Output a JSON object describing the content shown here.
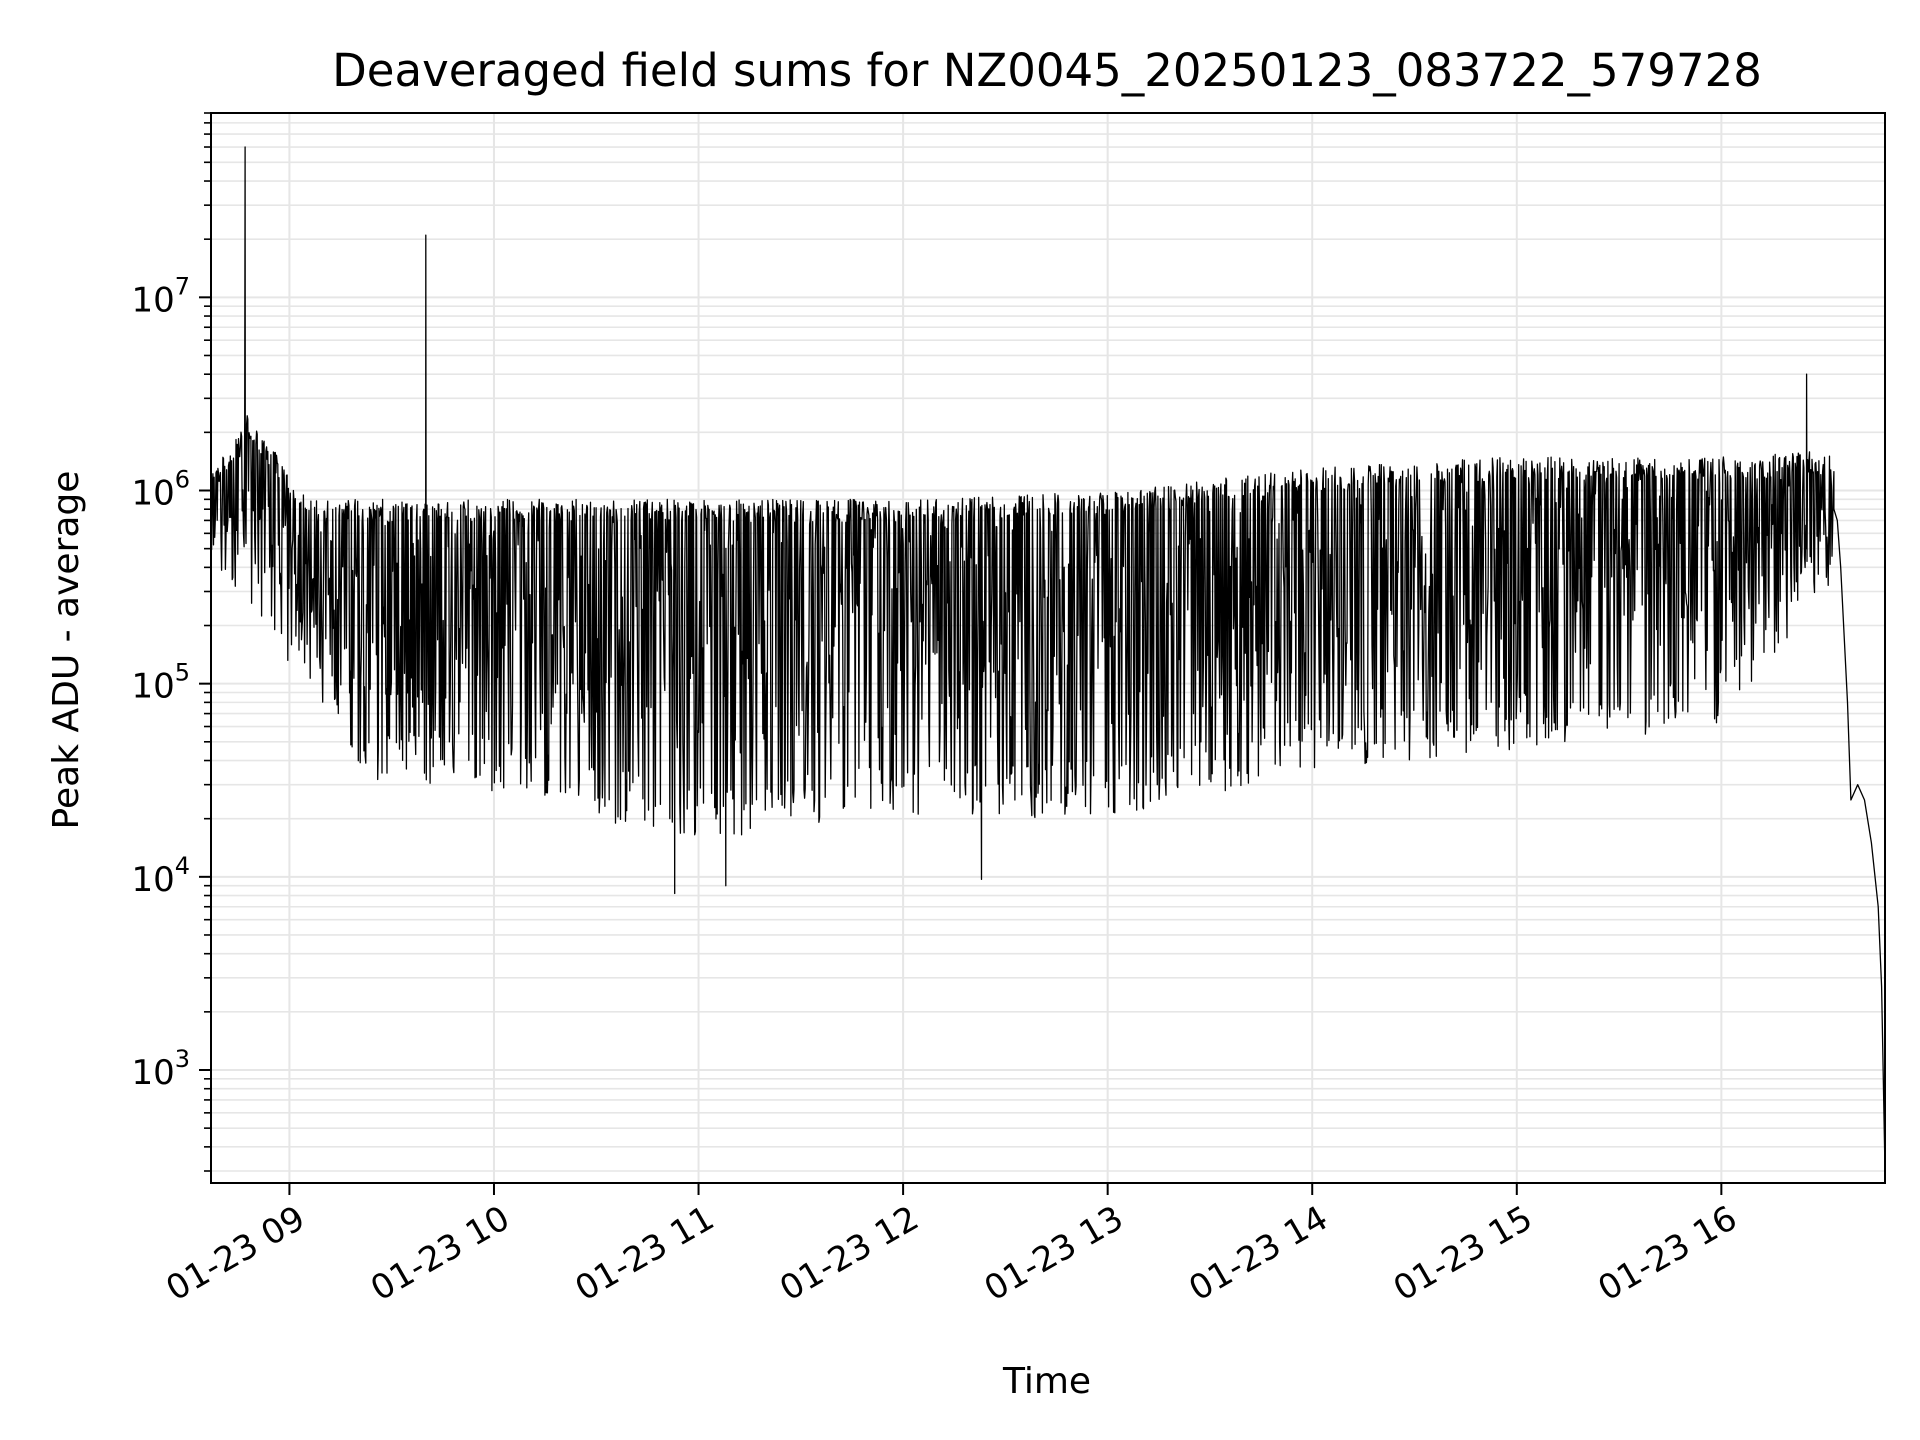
{
  "chart_data": {
    "type": "line",
    "title": "Deaveraged field sums for NZ0045_20250123_083722_579728",
    "xlabel": "Time",
    "ylabel": "Peak ADU - average",
    "yscale": "log",
    "ylim": [
      260,
      90000000
    ],
    "xlim": [
      "01-23 08:37",
      "01-23 16:48"
    ],
    "grid": true,
    "legend": "none",
    "x_ticks": [
      "01-23 09",
      "01-23 10",
      "01-23 11",
      "01-23 12",
      "01-23 13",
      "01-23 14",
      "01-23 15",
      "01-23 16"
    ],
    "y_ticks": [
      {
        "base": "10",
        "exp": "3",
        "value": 1000
      },
      {
        "base": "10",
        "exp": "4",
        "value": 10000
      },
      {
        "base": "10",
        "exp": "5",
        "value": 100000
      },
      {
        "base": "10",
        "exp": "6",
        "value": 1000000
      },
      {
        "base": "10",
        "exp": "7",
        "value": 10000000
      }
    ],
    "series": [
      {
        "color": "#000000",
        "envelope": {
          "x": [
            "01-23 08:37",
            "01-23 08:48",
            "01-23 09:06",
            "01-23 09:25",
            "01-23 09:45",
            "01-23 10:30",
            "01-23 11:00",
            "01-23 12:00",
            "01-23 13:00",
            "01-23 14:00",
            "01-23 15:00",
            "01-23 16:00",
            "01-23 16:30"
          ],
          "upper": [
            1200000,
            2500000,
            900000,
            900000,
            900000,
            900000,
            900000,
            900000,
            1000000,
            1300000,
            1500000,
            1500000,
            1600000
          ],
          "lower": [
            400000,
            250000,
            90000,
            30000,
            30000,
            20000,
            15000,
            20000,
            20000,
            35000,
            45000,
            60000,
            300000
          ]
        },
        "spikes": [
          {
            "x": "01-23 08:47",
            "y": 60000000
          },
          {
            "x": "01-23 09:40",
            "y": 21000000
          },
          {
            "x": "01-23 16:25",
            "y": 4000000
          },
          {
            "x": "01-23 10:53",
            "y": 8200
          },
          {
            "x": "01-23 11:08",
            "y": 9000
          },
          {
            "x": "01-23 12:23",
            "y": 9700
          }
        ],
        "tail": {
          "x": [
            "01-23 16:33",
            "01-23 16:34",
            "01-23 16:35",
            "01-23 16:37",
            "01-23 16:38",
            "01-23 16:40",
            "01-23 16:42",
            "01-23 16:44",
            "01-23 16:46",
            "01-23 16:47",
            "01-23 16:48"
          ],
          "y": [
            800000,
            700000,
            400000,
            80000,
            25000,
            30000,
            25000,
            15000,
            7000,
            2700,
            300
          ]
        }
      }
    ]
  }
}
